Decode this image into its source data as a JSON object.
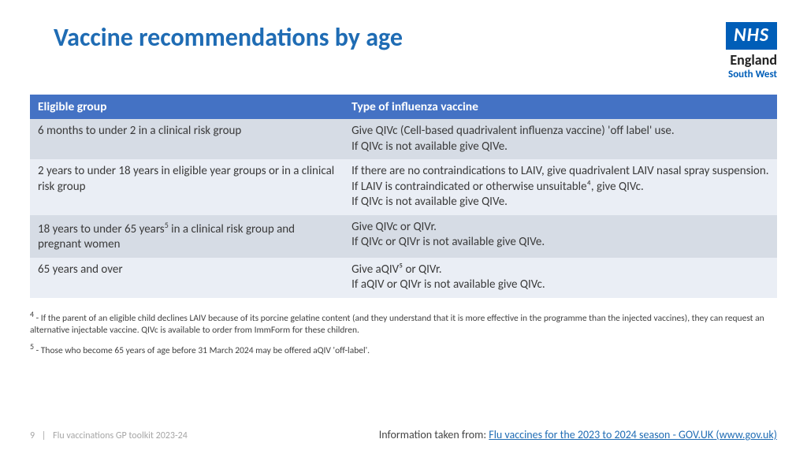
{
  "title": "Vaccine recommendations by age",
  "logo": {
    "nhs": "NHS",
    "england": "England",
    "region": "South West"
  },
  "table": {
    "headers": [
      "Eligible group",
      "Type of influenza vaccine"
    ],
    "rows": [
      {
        "group": "6 months to under 2 in a clinical risk group",
        "vaccine_lines": [
          "Give QIVc (Cell-based quadrivalent influenza vaccine) 'off label' use.",
          "If QIVc is not available give QIVe."
        ],
        "group_sup": null
      },
      {
        "group": "2 years to under 18 years in eligible year groups or in a clinical risk group",
        "vaccine_lines": [
          "If there are no contraindications to LAIV, give quadrivalent LAIV nasal spray suspension.",
          "If LAIV is contraindicated or otherwise unsuitable⁴, give QIVc.",
          "If QIVc is not available give QIVe."
        ],
        "group_sup": null
      },
      {
        "group_pre": "18 years to under 65 years",
        "group_sup": "5",
        "group_post": " in a clinical risk group and pregnant women",
        "vaccine_lines": [
          "Give QIVc or QIVr.",
          "If QIVc or QIVr is not available give QIVe."
        ]
      },
      {
        "group": "65 years and over",
        "vaccine_lines": [
          "Give aQIV⁵ or QIVr.",
          "If aQIV or QIVr is not available give QIVc."
        ],
        "group_sup": null
      }
    ]
  },
  "footnotes": {
    "f4_sup": "4",
    "f4": " - If the parent of an eligible child declines LAIV because of its porcine gelatine content (and they understand that it is more effective in the programme than the injected vaccines), they can request an alternative injectable vaccine. QIVc is available to order from ImmForm for these children.",
    "f5_sup": "5",
    "f5": " - Those who become 65 years of age before 31 March 2024 may be offered aQIV 'off-label'."
  },
  "footer": {
    "page": "9",
    "doc": "Flu vaccinations GP toolkit 2023-24",
    "source_label": "Information taken from: ",
    "source_link": "Flu vaccines for the 2023 to 2024 season - GOV.UK (www.gov.uk)"
  },
  "colors": {
    "title": "#1f6cb4",
    "header_bg": "#4472c4",
    "row_odd": "#d6dce5",
    "row_even": "#eaeef5",
    "nhs_blue": "#005eb8"
  }
}
